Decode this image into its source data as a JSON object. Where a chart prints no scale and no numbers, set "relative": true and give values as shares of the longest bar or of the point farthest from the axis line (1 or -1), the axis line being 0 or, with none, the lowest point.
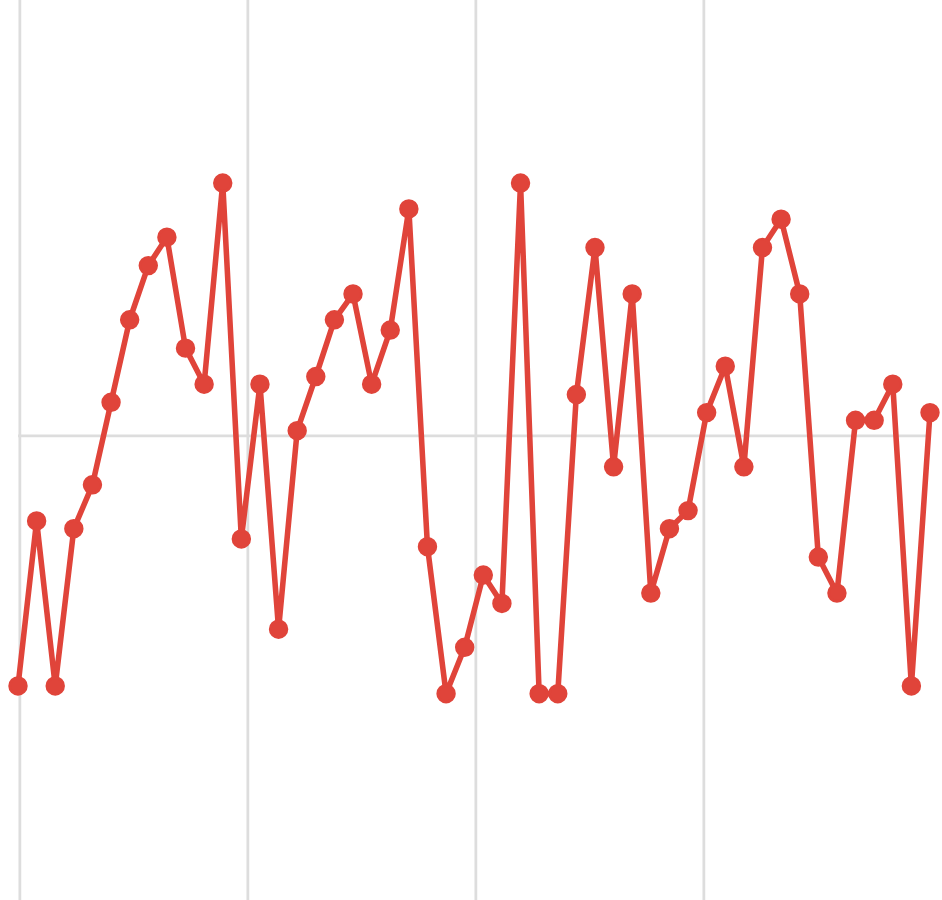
{
  "chart_data": {
    "type": "line",
    "relative": true,
    "categories": [
      null,
      null,
      null,
      null,
      null,
      null,
      null,
      null,
      null,
      null,
      null,
      null,
      null,
      null,
      null,
      null,
      null,
      null,
      null,
      null,
      null,
      null,
      null,
      null,
      null,
      null,
      null,
      null,
      null,
      null,
      null,
      null,
      null,
      null,
      null,
      null,
      null,
      null,
      null,
      null,
      null,
      null,
      null,
      null,
      null,
      null,
      null,
      null,
      null,
      null
    ],
    "series": [
      {
        "color": "#e0443a",
        "values": [
          -0.97,
          -0.33,
          -0.97,
          -0.36,
          -0.19,
          0.13,
          0.45,
          0.66,
          0.77,
          0.34,
          0.2,
          0.98,
          -0.4,
          0.2,
          -0.75,
          0.02,
          0.23,
          0.45,
          0.55,
          0.2,
          0.41,
          0.88,
          -0.43,
          -1,
          -0.82,
          -0.54,
          -0.65,
          0.98,
          -1,
          -1,
          0.16,
          0.73,
          -0.12,
          0.55,
          -0.61,
          -0.36,
          -0.29,
          0.09,
          0.27,
          -0.12,
          0.73,
          0.84,
          0.55,
          -0.47,
          -0.61,
          0.06,
          0.06,
          0.2,
          -0.97,
          0.09
        ]
      }
    ],
    "marker": "circle",
    "line_style": "solid",
    "grid": "x",
    "legend": false
  }
}
